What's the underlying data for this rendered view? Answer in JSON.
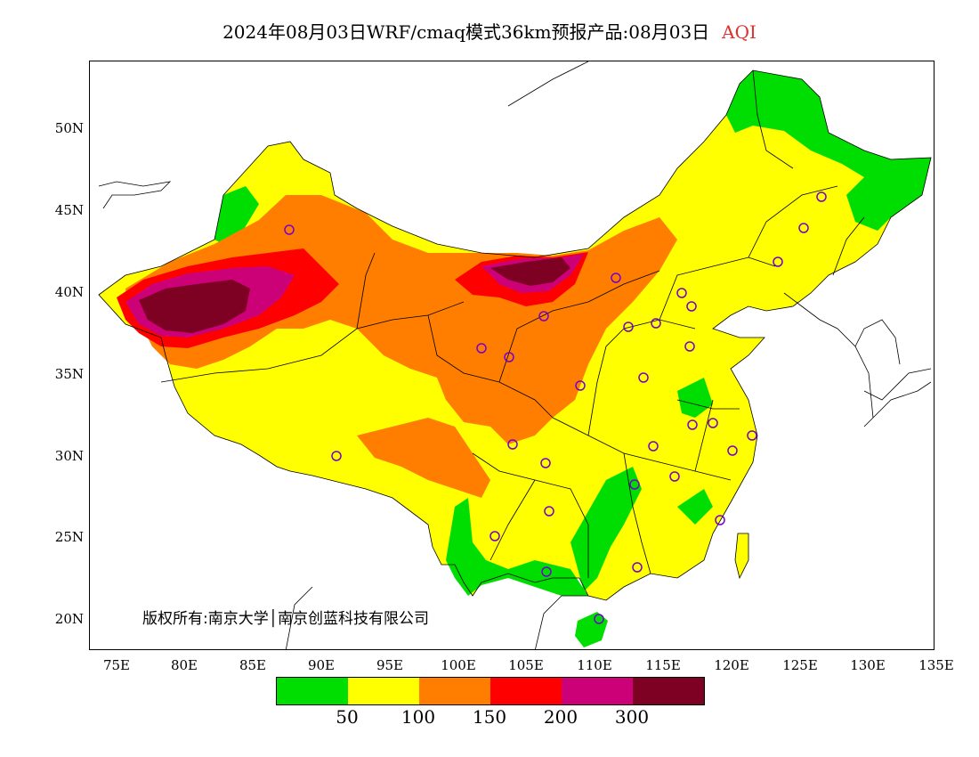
{
  "title": {
    "text": "2024年08月03日WRF/cmaq模式36km预报产品:08月03日",
    "metric": "AQI"
  },
  "copyright": "版权所有:南京大学│南京创蓝科技有限公司",
  "lat_ticks": [
    "50N",
    "45N",
    "40N",
    "35N",
    "30N",
    "25N",
    "20N"
  ],
  "lon_ticks": [
    "75E",
    "80E",
    "85E",
    "90E",
    "95E",
    "100E",
    "105E",
    "110E",
    "115E",
    "120E",
    "125E",
    "130E",
    "135E"
  ],
  "legend": {
    "colors": [
      "#00dd00",
      "#ffff00",
      "#ff7e00",
      "#ff0000",
      "#cc0077",
      "#7e0023"
    ],
    "labels": [
      "50",
      "100",
      "150",
      "200",
      "300"
    ]
  },
  "palette": {
    "good": "#00dd00",
    "moderate": "#ffff00",
    "unhealthy_sensitive": "#ff7e00",
    "unhealthy": "#ff0000",
    "very_unhealthy": "#cc0077",
    "hazardous": "#7e0023"
  }
}
